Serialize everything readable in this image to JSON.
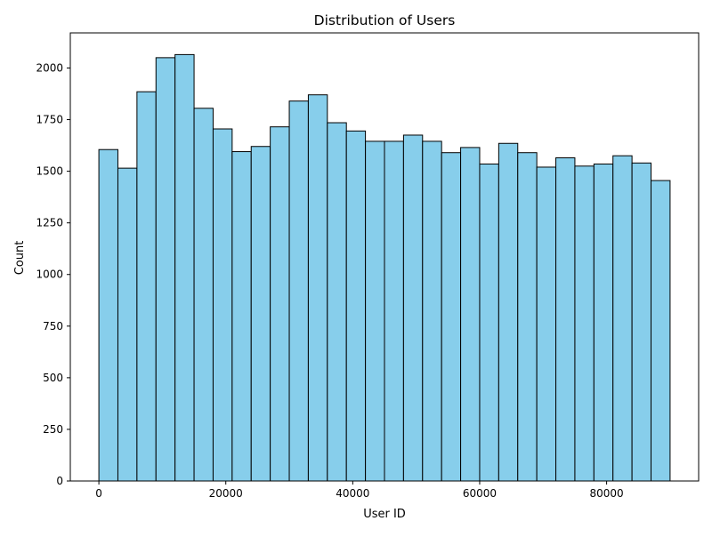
{
  "chart_data": {
    "type": "bar",
    "subtype": "histogram",
    "title": "Distribution of Users",
    "xlabel": "User ID",
    "ylabel": "Count",
    "bin_edges": [
      0,
      3000,
      6000,
      9000,
      12000,
      15000,
      18000,
      21000,
      24000,
      27000,
      30000,
      33000,
      36000,
      39000,
      42000,
      45000,
      48000,
      51000,
      54000,
      57000,
      60000,
      63000,
      66000,
      69000,
      72000,
      75000,
      78000,
      81000,
      84000,
      87000,
      90000
    ],
    "values": [
      1605,
      1515,
      1885,
      2050,
      2065,
      1805,
      1705,
      1595,
      1620,
      1715,
      1840,
      1870,
      1735,
      1695,
      1645,
      1645,
      1675,
      1645,
      1590,
      1615,
      1535,
      1635,
      1590,
      1520,
      1565,
      1525,
      1535,
      1575,
      1540,
      1455
    ],
    "xlim": [
      -4500,
      94500
    ],
    "ylim": [
      0,
      2170
    ],
    "xticks": [
      0,
      20000,
      40000,
      60000,
      80000
    ],
    "xtick_labels": [
      "0",
      "20000",
      "40000",
      "60000",
      "80000"
    ],
    "yticks": [
      0,
      250,
      500,
      750,
      1000,
      1250,
      1500,
      1750,
      2000
    ],
    "ytick_labels": [
      "0",
      "250",
      "500",
      "750",
      "1000",
      "1250",
      "1500",
      "1750",
      "2000"
    ],
    "grid": false,
    "legend": "none",
    "colors": {
      "bar_fill": "#87ceeb",
      "bar_edge": "#000000",
      "axes": "#000000",
      "background": "#ffffff"
    }
  }
}
